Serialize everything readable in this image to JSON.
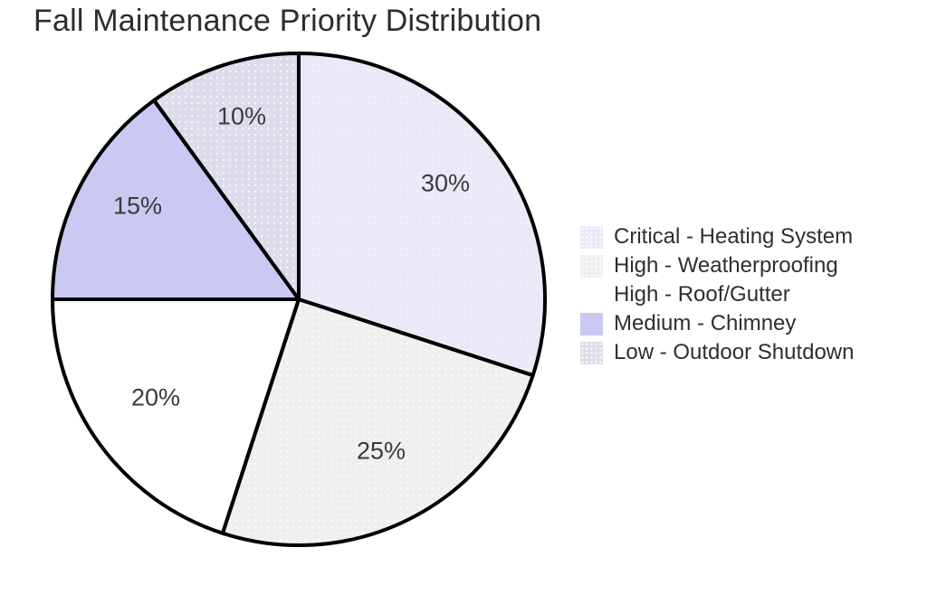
{
  "title": "Fall Maintenance Priority Distribution",
  "chart_data": {
    "type": "pie",
    "title": "Fall Maintenance Priority Distribution",
    "unit": "percent",
    "start_angle_deg": 90,
    "direction": "clockwise",
    "edge_color": "#000000",
    "edge_width": 4,
    "background": "#ffffff",
    "pct_label_color": "#3a3a3a",
    "title_color": "#2d2d2d",
    "legend_position": "right",
    "slices": [
      {
        "label": "Critical - Heating System",
        "value": 30,
        "pct_label": "30%",
        "color": "#e9e9f8",
        "texture": "faint-dots"
      },
      {
        "label": "High - Weatherproofing",
        "value": 25,
        "pct_label": "25%",
        "color": "#efeff0",
        "texture": "dots"
      },
      {
        "label": "High - Roof/Gutter",
        "value": 20,
        "pct_label": "20%",
        "color": "#ffffff",
        "texture": "none"
      },
      {
        "label": "Medium - Chimney",
        "value": 15,
        "pct_label": "15%",
        "color": "#c9c9f3",
        "texture": "none"
      },
      {
        "label": "Low - Outdoor Shutdown",
        "value": 10,
        "pct_label": "10%",
        "color": "#dcdcea",
        "texture": "dots"
      }
    ]
  }
}
